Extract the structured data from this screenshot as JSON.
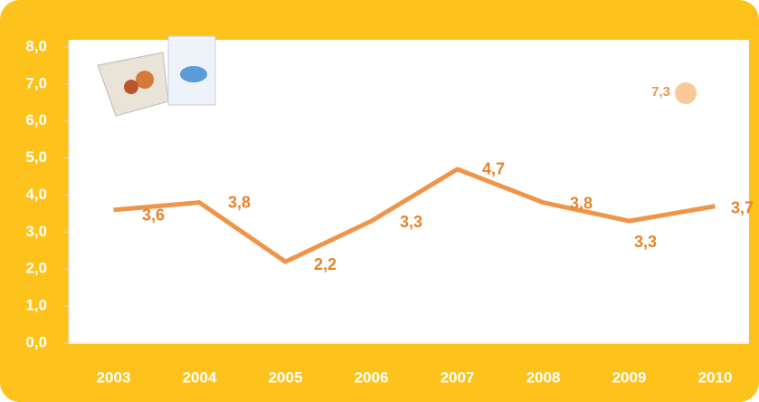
{
  "chart_data": {
    "type": "line",
    "categories": [
      "2003",
      "2004",
      "2005",
      "2006",
      "2007",
      "2008",
      "2009",
      "2010"
    ],
    "values": [
      3.6,
      3.8,
      2.2,
      3.3,
      4.7,
      3.8,
      3.3,
      3.7
    ],
    "value_labels": [
      "3,6",
      "3,8",
      "2,2",
      "3,3",
      "4,7",
      "3,8",
      "3,3",
      "3,7"
    ],
    "color": "#ef9549",
    "ylim": [
      0,
      8
    ],
    "yticks": [
      {
        "value": 0,
        "label": "0,0"
      },
      {
        "value": 1,
        "label": "1,0"
      },
      {
        "value": 2,
        "label": "2,0"
      },
      {
        "value": 3,
        "label": "3,0"
      },
      {
        "value": 4,
        "label": "4,0"
      },
      {
        "value": 5,
        "label": "5,0"
      },
      {
        "value": 6,
        "label": "6,0"
      },
      {
        "value": 7,
        "label": "7,0"
      },
      {
        "value": 8,
        "label": "8,0"
      }
    ],
    "annotation": "7,3"
  }
}
